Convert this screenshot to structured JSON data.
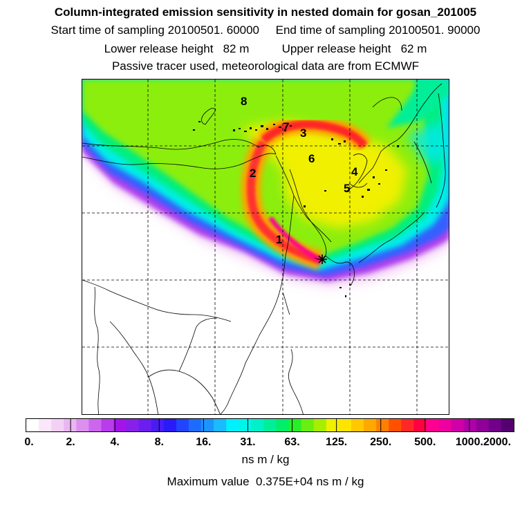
{
  "header": {
    "title": "Column-integrated emission sensitivity in nested domain for gosan_201005",
    "line2": "Start time of sampling 20100501. 60000     End time of sampling 20100501. 90000",
    "line3": "Lower release height   82 m          Upper release height   62 m",
    "line4": "Passive tracer used, meteorological data are from ECMWF"
  },
  "map": {
    "markers": [
      "1",
      "2",
      "3",
      "4",
      "5",
      "6",
      "7",
      "8"
    ],
    "release_site_icon": "star-icon"
  },
  "colorbar": {
    "tick_labels": [
      "0.",
      "2.",
      "4.",
      "8.",
      "16.",
      "31.",
      "63.",
      "125.",
      "250.",
      "500.",
      "1000.",
      "2000."
    ],
    "colors": [
      "#ffffff",
      "#fbe6fb",
      "#f4d0f6",
      "#eab6f2",
      "#dd8ff0",
      "#cc66ee",
      "#b83cec",
      "#a314ea",
      "#8820ea",
      "#6a1ef0",
      "#4a1cf4",
      "#2a1af8",
      "#2244ff",
      "#1e6cff",
      "#1c94ff",
      "#18bcff",
      "#00f0ff",
      "#00f4e8",
      "#00f0c8",
      "#00ee98",
      "#00ee68",
      "#28ee28",
      "#6aee10",
      "#a8ee00",
      "#f0f000",
      "#ffe400",
      "#ffc800",
      "#ffa800",
      "#ff8000",
      "#ff5000",
      "#ff2828",
      "#ff0040",
      "#ff0090",
      "#ee00a0",
      "#d000a8",
      "#b000a8",
      "#900098",
      "#700088",
      "#540070"
    ],
    "units": "ns m / kg"
  },
  "footer": {
    "max_value": "Maximum value  0.375E+04 ns m / kg"
  }
}
